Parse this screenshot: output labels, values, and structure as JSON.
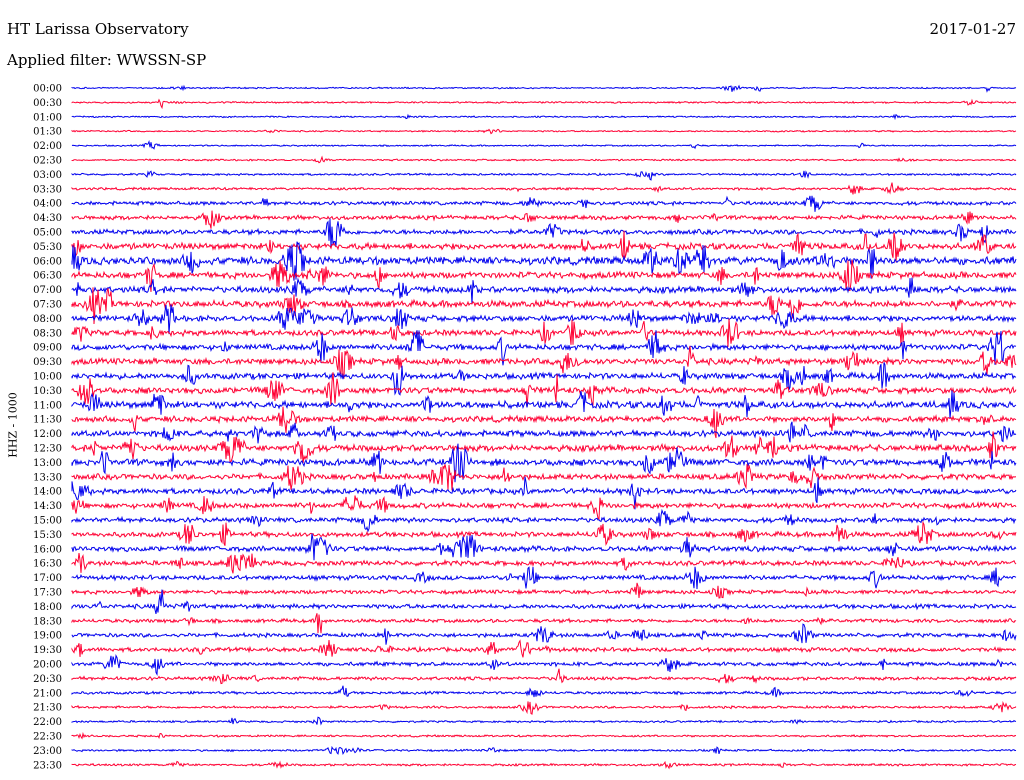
{
  "header": {
    "title": "HT Larissa Observatory",
    "date": "2017-01-27",
    "filter": "Applied filter: WWSSN-SP"
  },
  "chart_data": {
    "type": "line",
    "title": "HT Larissa Observatory",
    "ylabel": "HHZ - 1000",
    "xlabel": "",
    "x_range_minutes": [
      0,
      30
    ],
    "colors": [
      "#0000ee",
      "#ff0033"
    ],
    "traces": [
      {
        "label": "00:00",
        "color": "#0000ee",
        "amplitude": 0.6
      },
      {
        "label": "00:30",
        "color": "#ff0033",
        "amplitude": 0.7
      },
      {
        "label": "01:00",
        "color": "#0000ee",
        "amplitude": 0.6
      },
      {
        "label": "01:30",
        "color": "#ff0033",
        "amplitude": 0.6
      },
      {
        "label": "02:00",
        "color": "#0000ee",
        "amplitude": 0.6
      },
      {
        "label": "02:30",
        "color": "#ff0033",
        "amplitude": 0.7
      },
      {
        "label": "03:00",
        "color": "#0000ee",
        "amplitude": 0.8
      },
      {
        "label": "03:30",
        "color": "#ff0033",
        "amplitude": 1.0
      },
      {
        "label": "04:00",
        "color": "#0000ee",
        "amplitude": 1.5
      },
      {
        "label": "04:30",
        "color": "#ff0033",
        "amplitude": 1.7
      },
      {
        "label": "05:00",
        "color": "#0000ee",
        "amplitude": 2.0
      },
      {
        "label": "05:30",
        "color": "#ff0033",
        "amplitude": 2.6
      },
      {
        "label": "06:00",
        "color": "#0000ee",
        "amplitude": 3.2
      },
      {
        "label": "06:30",
        "color": "#ff0033",
        "amplitude": 2.6
      },
      {
        "label": "07:00",
        "color": "#0000ee",
        "amplitude": 2.6
      },
      {
        "label": "07:30",
        "color": "#ff0033",
        "amplitude": 2.8
      },
      {
        "label": "08:00",
        "color": "#0000ee",
        "amplitude": 2.5
      },
      {
        "label": "08:30",
        "color": "#ff0033",
        "amplitude": 2.4
      },
      {
        "label": "09:00",
        "color": "#0000ee",
        "amplitude": 2.4
      },
      {
        "label": "09:30",
        "color": "#ff0033",
        "amplitude": 2.5
      },
      {
        "label": "10:00",
        "color": "#0000ee",
        "amplitude": 2.5
      },
      {
        "label": "10:30",
        "color": "#ff0033",
        "amplitude": 2.6
      },
      {
        "label": "11:00",
        "color": "#0000ee",
        "amplitude": 2.8
      },
      {
        "label": "11:30",
        "color": "#ff0033",
        "amplitude": 2.4
      },
      {
        "label": "12:00",
        "color": "#0000ee",
        "amplitude": 2.5
      },
      {
        "label": "12:30",
        "color": "#ff0033",
        "amplitude": 2.6
      },
      {
        "label": "13:00",
        "color": "#0000ee",
        "amplitude": 2.7
      },
      {
        "label": "13:30",
        "color": "#ff0033",
        "amplitude": 2.3
      },
      {
        "label": "14:00",
        "color": "#0000ee",
        "amplitude": 2.3
      },
      {
        "label": "14:30",
        "color": "#ff0033",
        "amplitude": 2.2
      },
      {
        "label": "15:00",
        "color": "#0000ee",
        "amplitude": 2.0
      },
      {
        "label": "15:30",
        "color": "#ff0033",
        "amplitude": 2.1
      },
      {
        "label": "16:00",
        "color": "#0000ee",
        "amplitude": 2.2
      },
      {
        "label": "16:30",
        "color": "#ff0033",
        "amplitude": 2.0
      },
      {
        "label": "17:00",
        "color": "#0000ee",
        "amplitude": 1.9
      },
      {
        "label": "17:30",
        "color": "#ff0033",
        "amplitude": 1.6
      },
      {
        "label": "18:00",
        "color": "#0000ee",
        "amplitude": 1.8
      },
      {
        "label": "18:30",
        "color": "#ff0033",
        "amplitude": 1.5
      },
      {
        "label": "19:00",
        "color": "#0000ee",
        "amplitude": 1.6
      },
      {
        "label": "19:30",
        "color": "#ff0033",
        "amplitude": 1.7
      },
      {
        "label": "20:00",
        "color": "#0000ee",
        "amplitude": 1.6
      },
      {
        "label": "20:30",
        "color": "#ff0033",
        "amplitude": 1.4
      },
      {
        "label": "21:00",
        "color": "#0000ee",
        "amplitude": 1.1
      },
      {
        "label": "21:30",
        "color": "#ff0033",
        "amplitude": 1.0
      },
      {
        "label": "22:00",
        "color": "#0000ee",
        "amplitude": 0.8
      },
      {
        "label": "22:30",
        "color": "#ff0033",
        "amplitude": 0.8
      },
      {
        "label": "23:00",
        "color": "#0000ee",
        "amplitude": 0.8
      },
      {
        "label": "23:30",
        "color": "#ff0033",
        "amplitude": 0.9
      }
    ]
  }
}
